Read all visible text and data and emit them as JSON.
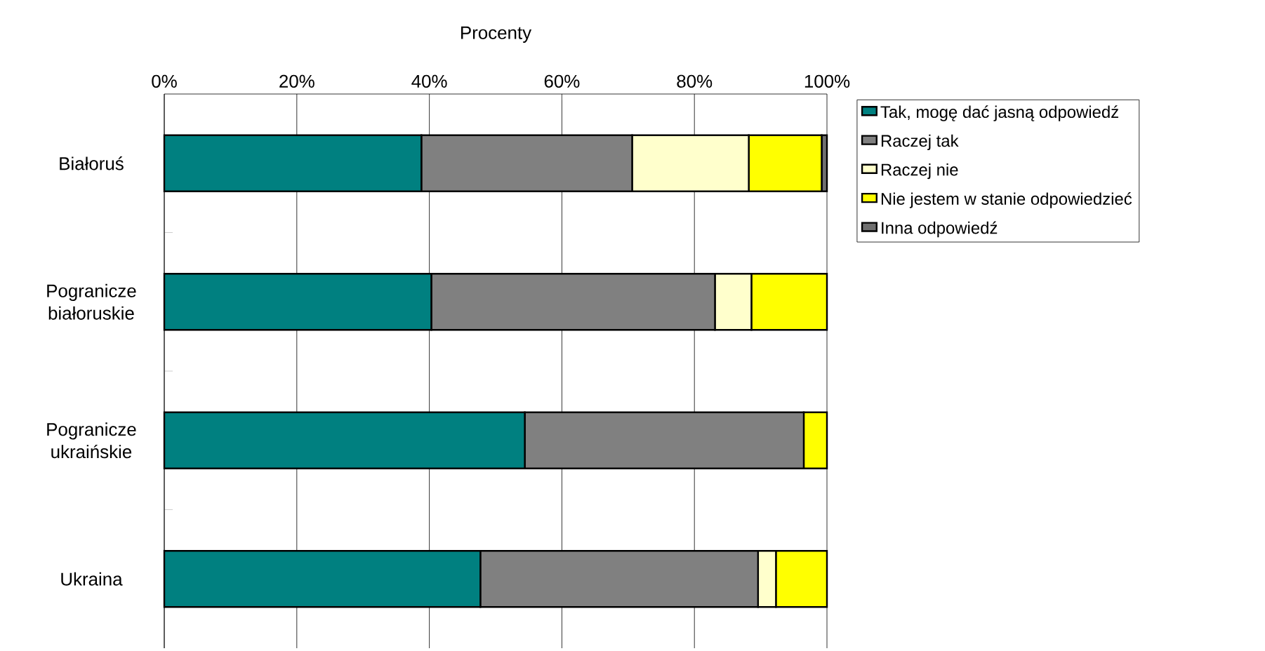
{
  "chart_data": {
    "type": "bar",
    "orientation": "horizontal",
    "stacked": true,
    "xlabel": "Procenty",
    "categories": [
      "Białoruś",
      "Pogranicze białoruskie",
      "Pogranicze ukraińskie",
      "Ukraina"
    ],
    "series": [
      {
        "name": "Tak, mogę dać jasną odpowiedź",
        "color": "#008080",
        "values": [
          38.8,
          40.3,
          54.4,
          47.7
        ]
      },
      {
        "name": "Raczej tak",
        "color": "#808080",
        "values": [
          31.8,
          42.8,
          42.1,
          41.9
        ]
      },
      {
        "name": "Raczej nie",
        "color": "#ffffcc",
        "values": [
          17.6,
          5.5,
          0,
          2.7
        ]
      },
      {
        "name": "Nie jestem w stanie odpowiedzieć",
        "color": "#ffff00",
        "values": [
          11.0,
          11.4,
          3.5,
          7.7
        ]
      },
      {
        "name": "Inna odpowiedź",
        "color": "#707070",
        "values": [
          0.8,
          0,
          0,
          0
        ]
      }
    ],
    "xlim": [
      0,
      100
    ],
    "xticks": [
      {
        "value": 0,
        "label": "0%"
      },
      {
        "value": 20,
        "label": "20%"
      },
      {
        "value": 40,
        "label": "40%"
      },
      {
        "value": 60,
        "label": "60%"
      },
      {
        "value": 80,
        "label": "80%"
      },
      {
        "value": 100,
        "label": "100%"
      }
    ],
    "grid": "x",
    "legend": "right"
  }
}
